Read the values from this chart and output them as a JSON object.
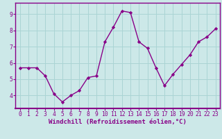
{
  "x": [
    0,
    1,
    2,
    3,
    4,
    5,
    6,
    7,
    8,
    9,
    10,
    11,
    12,
    13,
    14,
    15,
    16,
    17,
    18,
    19,
    20,
    21,
    22,
    23
  ],
  "y": [
    5.7,
    5.7,
    5.7,
    5.2,
    4.1,
    3.6,
    4.0,
    4.3,
    5.1,
    5.2,
    7.3,
    8.2,
    9.2,
    9.1,
    7.3,
    6.9,
    5.7,
    4.6,
    5.3,
    5.9,
    6.5,
    7.3,
    7.6,
    8.1
  ],
  "line_color": "#880088",
  "marker": "D",
  "marker_size": 2.2,
  "bg_color": "#cce8e8",
  "grid_color": "#aad4d4",
  "xlabel": "Windchill (Refroidissement éolien,°C)",
  "ylabel": "",
  "xlim": [
    -0.5,
    23.5
  ],
  "ylim": [
    3.2,
    9.7
  ],
  "yticks": [
    4,
    5,
    6,
    7,
    8,
    9
  ],
  "xticks": [
    0,
    1,
    2,
    3,
    4,
    5,
    6,
    7,
    8,
    9,
    10,
    11,
    12,
    13,
    14,
    15,
    16,
    17,
    18,
    19,
    20,
    21,
    22,
    23
  ],
  "axis_color": "#880088",
  "tick_color": "#880088",
  "label_fontsize": 6.5,
  "tick_fontsize": 5.8,
  "linewidth": 1.0
}
